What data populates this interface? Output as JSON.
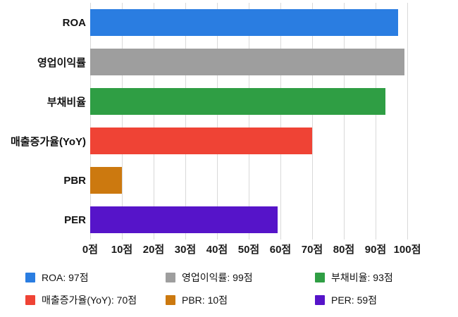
{
  "chart_data": {
    "type": "bar",
    "orientation": "horizontal",
    "title": "",
    "xlabel": "",
    "ylabel": "",
    "unit": "점",
    "categories": [
      "ROA",
      "영업이익률",
      "부채비율",
      "매출증가율(YoY)",
      "PBR",
      "PER"
    ],
    "values": [
      97,
      99,
      93,
      70,
      10,
      59
    ],
    "colors": [
      "#2a7de1",
      "#9e9e9e",
      "#2f9e44",
      "#ef4335",
      "#cc790f",
      "#5614c9"
    ],
    "xlim": [
      0,
      100
    ],
    "x_tick_values": [
      0,
      10,
      20,
      30,
      40,
      50,
      60,
      70,
      80,
      90,
      100
    ],
    "x_tick_labels": [
      "0점",
      "10점",
      "20점",
      "30점",
      "40점",
      "50점",
      "60점",
      "70점",
      "80점",
      "90점",
      "100점"
    ],
    "grid": true,
    "gridline_color": "#d9d9d9",
    "legend_position": "bottom",
    "legend_labels": [
      "ROA: 97점",
      "영업이익률: 99점",
      "부채비율: 93점",
      "매출증가율(YoY): 70점",
      "PBR: 10점",
      "PER: 59점"
    ]
  }
}
